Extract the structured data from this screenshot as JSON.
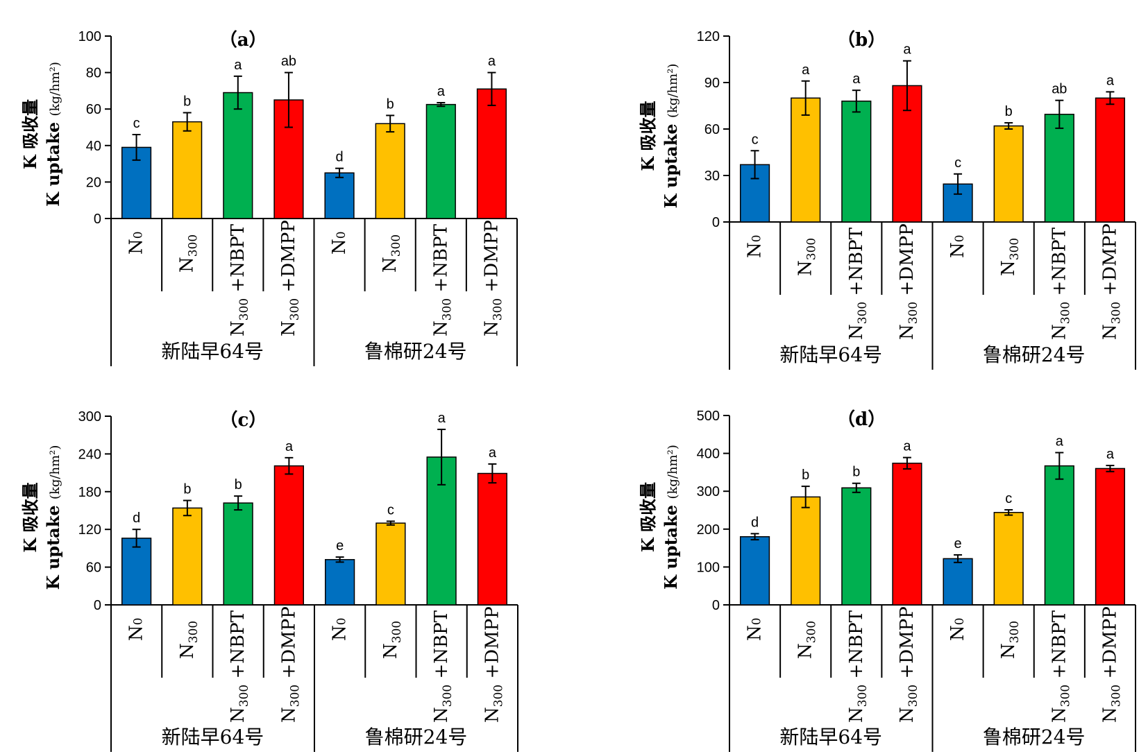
{
  "chart_data": [
    {
      "panel": "(a)",
      "type": "bar",
      "title": "（a）",
      "ylabel_cn": "K 吸收量",
      "ylabel_en": "K uptake",
      "ylabel_unit": "(kg/hm²)",
      "ylim": [
        0,
        100
      ],
      "yticks": [
        "0",
        "20",
        "40",
        "60",
        "80",
        "100"
      ],
      "groups": [
        "新陆早64号",
        "鲁棉研24号"
      ],
      "bars": [
        {
          "cat": "N0",
          "group": 0,
          "value": 39,
          "err": 7,
          "label": "c",
          "color": "#0070C0"
        },
        {
          "cat": "N300",
          "group": 0,
          "value": 53,
          "err": 5,
          "label": "b",
          "color": "#FFC000"
        },
        {
          "cat": "N300+NBPT",
          "group": 0,
          "value": 69,
          "err": 9,
          "label": "a",
          "color": "#00B050"
        },
        {
          "cat": "N300+DMPP",
          "group": 0,
          "value": 65,
          "err": 15,
          "label": "ab",
          "color": "#FF0000"
        },
        {
          "cat": "N0",
          "group": 1,
          "value": 25,
          "err": 2.5,
          "label": "d",
          "color": "#0070C0"
        },
        {
          "cat": "N300",
          "group": 1,
          "value": 52,
          "err": 4.5,
          "label": "b",
          "color": "#FFC000"
        },
        {
          "cat": "N300+NBPT",
          "group": 1,
          "value": 62.5,
          "err": 1,
          "label": "a",
          "color": "#00B050"
        },
        {
          "cat": "N300+DMPP",
          "group": 1,
          "value": 71,
          "err": 9,
          "label": "a",
          "color": "#FF0000"
        }
      ]
    },
    {
      "panel": "(b)",
      "type": "bar",
      "title": "（b）",
      "ylabel_cn": "K 吸收量",
      "ylabel_en": "K uptake",
      "ylabel_unit": "(kg/hm²)",
      "ylim": [
        0,
        120
      ],
      "yticks": [
        "0",
        "30",
        "60",
        "90",
        "120"
      ],
      "groups": [
        "新陆早64号",
        "鲁棉研24号"
      ],
      "bars": [
        {
          "cat": "N0",
          "group": 0,
          "value": 37,
          "err": 9,
          "label": "c",
          "color": "#0070C0"
        },
        {
          "cat": "N300",
          "group": 0,
          "value": 80,
          "err": 11,
          "label": "a",
          "color": "#FFC000"
        },
        {
          "cat": "N300+NBPT",
          "group": 0,
          "value": 78,
          "err": 7,
          "label": "a",
          "color": "#00B050"
        },
        {
          "cat": "N300+DMPP",
          "group": 0,
          "value": 88,
          "err": 16,
          "label": "a",
          "color": "#FF0000"
        },
        {
          "cat": "N0",
          "group": 1,
          "value": 24.5,
          "err": 6.5,
          "label": "c",
          "color": "#0070C0"
        },
        {
          "cat": "N300",
          "group": 1,
          "value": 62,
          "err": 2,
          "label": "b",
          "color": "#FFC000"
        },
        {
          "cat": "N300+NBPT",
          "group": 1,
          "value": 69.5,
          "err": 9,
          "label": "ab",
          "color": "#00B050"
        },
        {
          "cat": "N300+DMPP",
          "group": 1,
          "value": 80,
          "err": 4,
          "label": "a",
          "color": "#FF0000"
        }
      ]
    },
    {
      "panel": "(c)",
      "type": "bar",
      "title": "（c）",
      "ylabel_cn": "K 吸收量",
      "ylabel_en": "K uptake",
      "ylabel_unit": "(kg/hm²)",
      "ylim": [
        0,
        300
      ],
      "yticks": [
        "0",
        "60",
        "120",
        "180",
        "240",
        "300"
      ],
      "groups": [
        "新陆早64号",
        "鲁棉研24号"
      ],
      "bars": [
        {
          "cat": "N0",
          "group": 0,
          "value": 106,
          "err": 14,
          "label": "d",
          "color": "#0070C0"
        },
        {
          "cat": "N300",
          "group": 0,
          "value": 154,
          "err": 12,
          "label": "b",
          "color": "#FFC000"
        },
        {
          "cat": "N300+NBPT",
          "group": 0,
          "value": 162,
          "err": 11,
          "label": "b",
          "color": "#00B050"
        },
        {
          "cat": "N300+DMPP",
          "group": 0,
          "value": 221,
          "err": 13,
          "label": "a",
          "color": "#FF0000"
        },
        {
          "cat": "N0",
          "group": 1,
          "value": 72,
          "err": 4,
          "label": "e",
          "color": "#0070C0"
        },
        {
          "cat": "N300",
          "group": 1,
          "value": 130,
          "err": 3,
          "label": "c",
          "color": "#FFC000"
        },
        {
          "cat": "N300+NBPT",
          "group": 1,
          "value": 235,
          "err": 44,
          "label": "a",
          "color": "#00B050"
        },
        {
          "cat": "N300+DMPP",
          "group": 1,
          "value": 209,
          "err": 15,
          "label": "a",
          "color": "#FF0000"
        }
      ]
    },
    {
      "panel": "(d)",
      "type": "bar",
      "title": "（d）",
      "ylabel_cn": "K 吸收量",
      "ylabel_en": "K uptake",
      "ylabel_unit": "(kg/hm²)",
      "ylim": [
        0,
        500
      ],
      "yticks": [
        "0",
        "100",
        "200",
        "300",
        "400",
        "500"
      ],
      "groups": [
        "新陆早64号",
        "鲁棉研24号"
      ],
      "bars": [
        {
          "cat": "N0",
          "group": 0,
          "value": 180,
          "err": 8,
          "label": "d",
          "color": "#0070C0"
        },
        {
          "cat": "N300",
          "group": 0,
          "value": 285,
          "err": 28,
          "label": "b",
          "color": "#FFC000"
        },
        {
          "cat": "N300+NBPT",
          "group": 0,
          "value": 309,
          "err": 12,
          "label": "b",
          "color": "#00B050"
        },
        {
          "cat": "N300+DMPP",
          "group": 0,
          "value": 374,
          "err": 15,
          "label": "a",
          "color": "#FF0000"
        },
        {
          "cat": "N0",
          "group": 1,
          "value": 122,
          "err": 10,
          "label": "e",
          "color": "#0070C0"
        },
        {
          "cat": "N300",
          "group": 1,
          "value": 244,
          "err": 7,
          "label": "c",
          "color": "#FFC000"
        },
        {
          "cat": "N300+NBPT",
          "group": 1,
          "value": 367,
          "err": 35,
          "label": "a",
          "color": "#00B050"
        },
        {
          "cat": "N300+DMPP",
          "group": 1,
          "value": 360,
          "err": 8,
          "label": "a",
          "color": "#FF0000"
        }
      ]
    }
  ]
}
